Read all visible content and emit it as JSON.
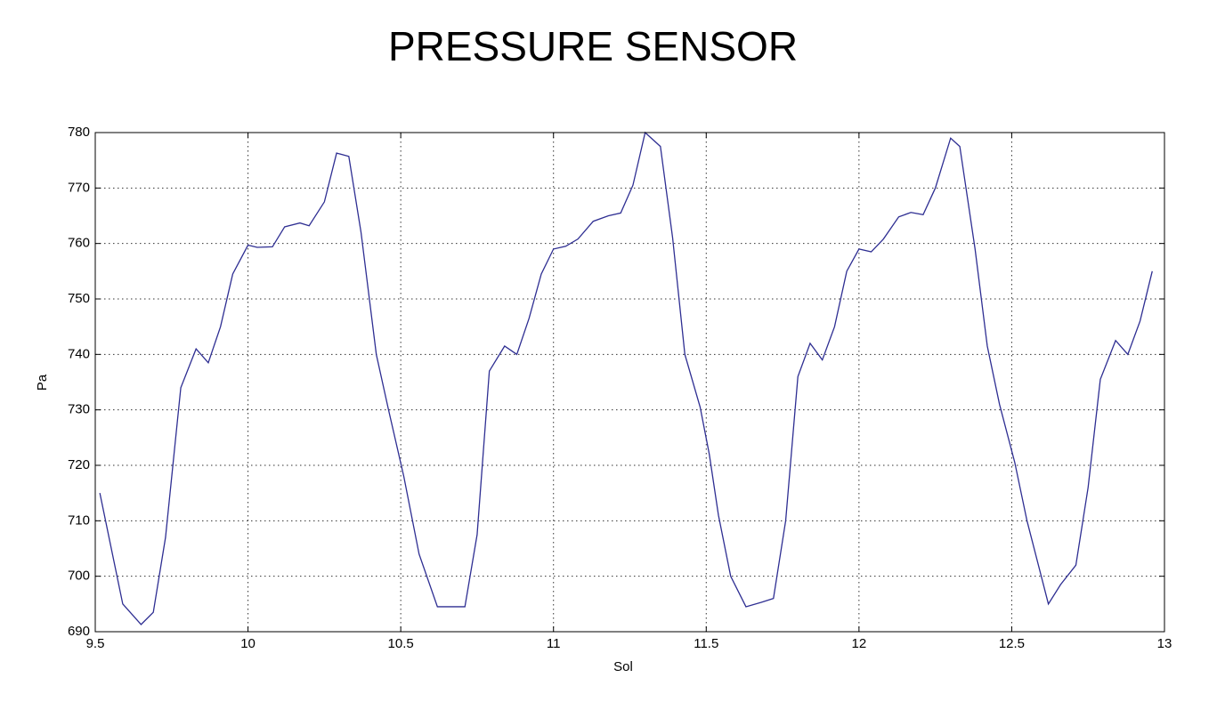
{
  "chart_data": {
    "type": "line",
    "title": "PRESSURE SENSOR",
    "x_label": "Sol",
    "y_label": "Pa",
    "xlim": [
      9.5,
      13
    ],
    "ylim": [
      690,
      780
    ],
    "xticks": [
      9.5,
      10,
      10.5,
      11,
      11.5,
      12,
      12.5,
      13
    ],
    "yticks": [
      690,
      700,
      710,
      720,
      730,
      740,
      750,
      760,
      770,
      780
    ],
    "grid": true,
    "series": [
      {
        "color": "#2e2e92",
        "x": [
          9.515,
          9.56,
          9.59,
          9.65,
          9.69,
          9.73,
          9.78,
          9.83,
          9.87,
          9.91,
          9.95,
          10.0,
          10.03,
          10.08,
          10.12,
          10.17,
          10.2,
          10.25,
          10.29,
          10.33,
          10.37,
          10.42,
          10.46,
          10.51,
          10.56,
          10.62,
          10.67,
          10.71,
          10.75,
          10.79,
          10.84,
          10.88,
          10.92,
          10.96,
          11.0,
          11.04,
          11.08,
          11.13,
          11.18,
          11.22,
          11.26,
          11.3,
          11.35,
          11.39,
          11.43,
          11.48,
          11.51,
          11.54,
          11.58,
          11.63,
          11.68,
          11.72,
          11.76,
          11.8,
          11.84,
          11.88,
          11.92,
          11.96,
          12.0,
          12.04,
          12.08,
          12.13,
          12.17,
          12.21,
          12.25,
          12.3,
          12.33,
          12.38,
          12.42,
          12.46,
          12.51,
          12.55,
          12.62,
          12.66,
          12.71,
          12.75,
          12.79,
          12.84,
          12.88,
          12.92,
          12.96
        ],
        "values": [
          715,
          703,
          695,
          691.3,
          693.5,
          707,
          734,
          741,
          738.5,
          745,
          754.5,
          759.7,
          759.3,
          759.4,
          763,
          763.7,
          763.2,
          767.5,
          776.3,
          775.7,
          762,
          740,
          730,
          718,
          704,
          694.5,
          694.5,
          694.5,
          707.5,
          737,
          741.5,
          740,
          746.5,
          754.5,
          759,
          759.5,
          760.8,
          764,
          765,
          765.5,
          770.5,
          780,
          777.5,
          761,
          740,
          730.5,
          722,
          711,
          700,
          694.5,
          695.3,
          696,
          710,
          736,
          742,
          739,
          745,
          755,
          759,
          758.5,
          760.8,
          764.8,
          765.6,
          765.2,
          770,
          779,
          777.5,
          759,
          741.5,
          731,
          720.5,
          710,
          695,
          698.5,
          702,
          716,
          735.5,
          742.5,
          740,
          746,
          755
        ]
      }
    ]
  }
}
